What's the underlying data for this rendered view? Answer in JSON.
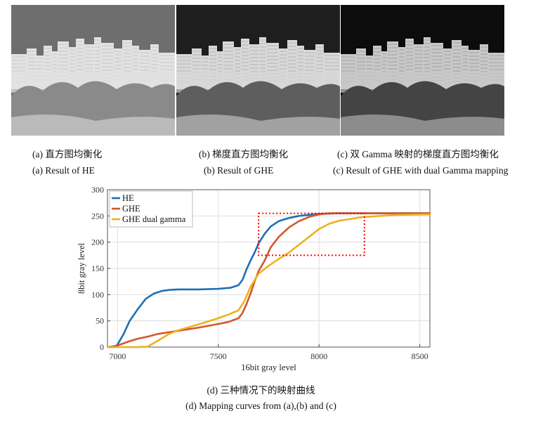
{
  "captions": {
    "a_cn": "(a)  直方图均衡化",
    "b_cn": "(b)  梯度直方图均衡化",
    "c_cn": "(c)  双 Gamma 映射的梯度直方图均衡化",
    "a_en": "(a) Result of HE",
    "b_en": "(b) Result of GHE",
    "c_en": "(c) Result of GHE with dual Gamma mapping",
    "d_cn": "(d)  三种情况下的映射曲线",
    "d_en": "(d) Mapping curves from (a),(b) and (c)"
  },
  "photos": [
    {
      "id": "a",
      "sky": "#6e6e6e",
      "buildings": "#e2e2e2",
      "trees": "#8a8a8a"
    },
    {
      "id": "b",
      "sky": "#1e1e1e",
      "buildings": "#d8d8d8",
      "trees": "#5e5e5e"
    },
    {
      "id": "c",
      "sky": "#0c0c0c",
      "buildings": "#c8c8c8",
      "trees": "#444444"
    }
  ],
  "chart_data": {
    "type": "line",
    "xlabel": "16bit gray level",
    "ylabel": "8bit gray level",
    "xlim": [
      6950,
      8550
    ],
    "ylim": [
      0,
      300
    ],
    "xticks": [
      7000,
      7500,
      8000,
      8500
    ],
    "yticks": [
      0,
      50,
      100,
      150,
      200,
      250,
      300
    ],
    "grid": true,
    "legend": "top-left",
    "series": [
      {
        "name": "HE",
        "color": "#1f6fb5",
        "x": [
          6955,
          6985,
          7000,
          7030,
          7060,
          7100,
          7140,
          7180,
          7220,
          7260,
          7300,
          7400,
          7500,
          7560,
          7600,
          7620,
          7640,
          7660,
          7680,
          7700,
          7730,
          7760,
          7800,
          7850,
          7900,
          7950,
          8000,
          8100,
          8300,
          8550
        ],
        "y": [
          0,
          0,
          5,
          25,
          50,
          72,
          92,
          102,
          107,
          109,
          110,
          110,
          111,
          113,
          118,
          128,
          148,
          165,
          180,
          198,
          216,
          230,
          240,
          246,
          250,
          252,
          254,
          255,
          255,
          255
        ]
      },
      {
        "name": "GHE",
        "color": "#d4562a",
        "x": [
          6955,
          7000,
          7050,
          7100,
          7150,
          7200,
          7300,
          7400,
          7500,
          7550,
          7600,
          7620,
          7640,
          7660,
          7680,
          7700,
          7730,
          7760,
          7800,
          7850,
          7900,
          7950,
          8000,
          8050,
          8100,
          8300,
          8550
        ],
        "y": [
          0,
          3,
          10,
          16,
          20,
          25,
          31,
          37,
          44,
          48,
          55,
          65,
          82,
          102,
          125,
          145,
          165,
          190,
          210,
          228,
          240,
          248,
          253,
          255,
          255,
          255,
          255
        ]
      },
      {
        "name": "GHE dual gamma",
        "color": "#edb120",
        "x": [
          6955,
          7000,
          7100,
          7150,
          7200,
          7250,
          7300,
          7400,
          7500,
          7550,
          7600,
          7630,
          7660,
          7700,
          7750,
          7800,
          7850,
          7900,
          7950,
          8000,
          8050,
          8100,
          8200,
          8300,
          8400,
          8550
        ],
        "y": [
          0,
          0,
          0,
          1,
          12,
          24,
          32,
          43,
          55,
          62,
          70,
          88,
          115,
          140,
          155,
          168,
          180,
          195,
          210,
          225,
          235,
          241,
          247,
          250,
          252,
          253
        ]
      }
    ],
    "highlight_box": {
      "x": [
        7700,
        8225
      ],
      "y": [
        175,
        255
      ],
      "color": "#ff0000"
    }
  }
}
